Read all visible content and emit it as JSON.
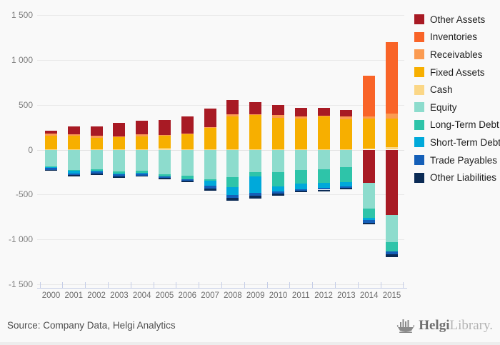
{
  "chart_data": {
    "type": "bar",
    "stacked": true,
    "title": "",
    "xlabel": "",
    "ylabel": "",
    "categories": [
      "2000",
      "2001",
      "2002",
      "2003",
      "2004",
      "2005",
      "2006",
      "2007",
      "2008",
      "2009",
      "2010",
      "2011",
      "2012",
      "2013",
      "2014",
      "2015"
    ],
    "ylim": [
      -1500,
      1500
    ],
    "yticks": {
      "values": [
        1500,
        1000,
        500,
        0,
        -500,
        -1000,
        -1500
      ],
      "labels": [
        "1 500",
        "1 000",
        "500",
        "0",
        "-500",
        "-1 000",
        "-1 500"
      ]
    },
    "grid": true,
    "legend_position": "top-right",
    "series": [
      {
        "name": "Other Assets",
        "key": "other_assets",
        "color": "#a81a24",
        "values": [
          35,
          90,
          103,
          150,
          152,
          168,
          194,
          205,
          162,
          140,
          110,
          97,
          87,
          79,
          -368,
          -730
        ]
      },
      {
        "name": "Inventories",
        "key": "inventories",
        "color": "#f96428",
        "values": [
          0,
          0,
          0,
          0,
          0,
          0,
          0,
          0,
          0,
          0,
          0,
          0,
          0,
          0,
          450,
          799
        ]
      },
      {
        "name": "Receivables",
        "key": "receivables",
        "color": "#fb9b52",
        "values": [
          22,
          15,
          22,
          5,
          21,
          5,
          5,
          5,
          27,
          5,
          34,
          18,
          5,
          26,
          26,
          53
        ]
      },
      {
        "name": "Fixed Assets",
        "key": "fixed_assets",
        "color": "#f7af00",
        "values": [
          155,
          150,
          128,
          138,
          145,
          152,
          168,
          245,
          362,
          383,
          349,
          344,
          367,
          336,
          330,
          315
        ]
      },
      {
        "name": "Cash",
        "key": "cash",
        "color": "#fbd787",
        "values": [
          3,
          3,
          3,
          3,
          3,
          8,
          3,
          3,
          5,
          5,
          5,
          5,
          5,
          5,
          15,
          31
        ]
      },
      {
        "name": "Equity",
        "key": "equity",
        "color": "#8ddccd",
        "values": [
          -190,
          -229,
          -216,
          -241,
          -235,
          -275,
          -288,
          -333,
          -309,
          -248,
          -248,
          -228,
          -215,
          -197,
          -288,
          -301
        ]
      },
      {
        "name": "Long-Term Debt",
        "key": "long_term_debt",
        "color": "#2ec4a9",
        "values": [
          -8,
          -5,
          -21,
          -28,
          -26,
          -20,
          -39,
          -10,
          -106,
          -48,
          -159,
          -152,
          -157,
          -165,
          -105,
          -105
        ]
      },
      {
        "name": "Short-Term Debt",
        "key": "short_term_debt",
        "color": "#00a9da",
        "values": [
          -5,
          -30,
          -5,
          -5,
          -5,
          -5,
          -5,
          -61,
          -88,
          -186,
          -61,
          -58,
          -53,
          -45,
          -26,
          0
        ]
      },
      {
        "name": "Trade Payables",
        "key": "trade_payables",
        "color": "#155fb8",
        "values": [
          -20,
          -21,
          -27,
          -27,
          -22,
          -12,
          -11,
          -26,
          -32,
          -31,
          -19,
          -19,
          -21,
          -18,
          -26,
          -31
        ]
      },
      {
        "name": "Other Liabilities",
        "key": "other_liabilities",
        "color": "#0b2b55",
        "values": [
          -5,
          -16,
          -11,
          -16,
          -11,
          -15,
          -16,
          -29,
          -32,
          -30,
          -26,
          -21,
          -21,
          -21,
          -21,
          -32
        ]
      }
    ]
  },
  "footer": {
    "source": "Source: Company Data, Helgi Analytics",
    "logo_primary": "Helgi",
    "logo_secondary": "Library."
  },
  "icons": {
    "logo_icon": "helgi-ship-icon"
  }
}
